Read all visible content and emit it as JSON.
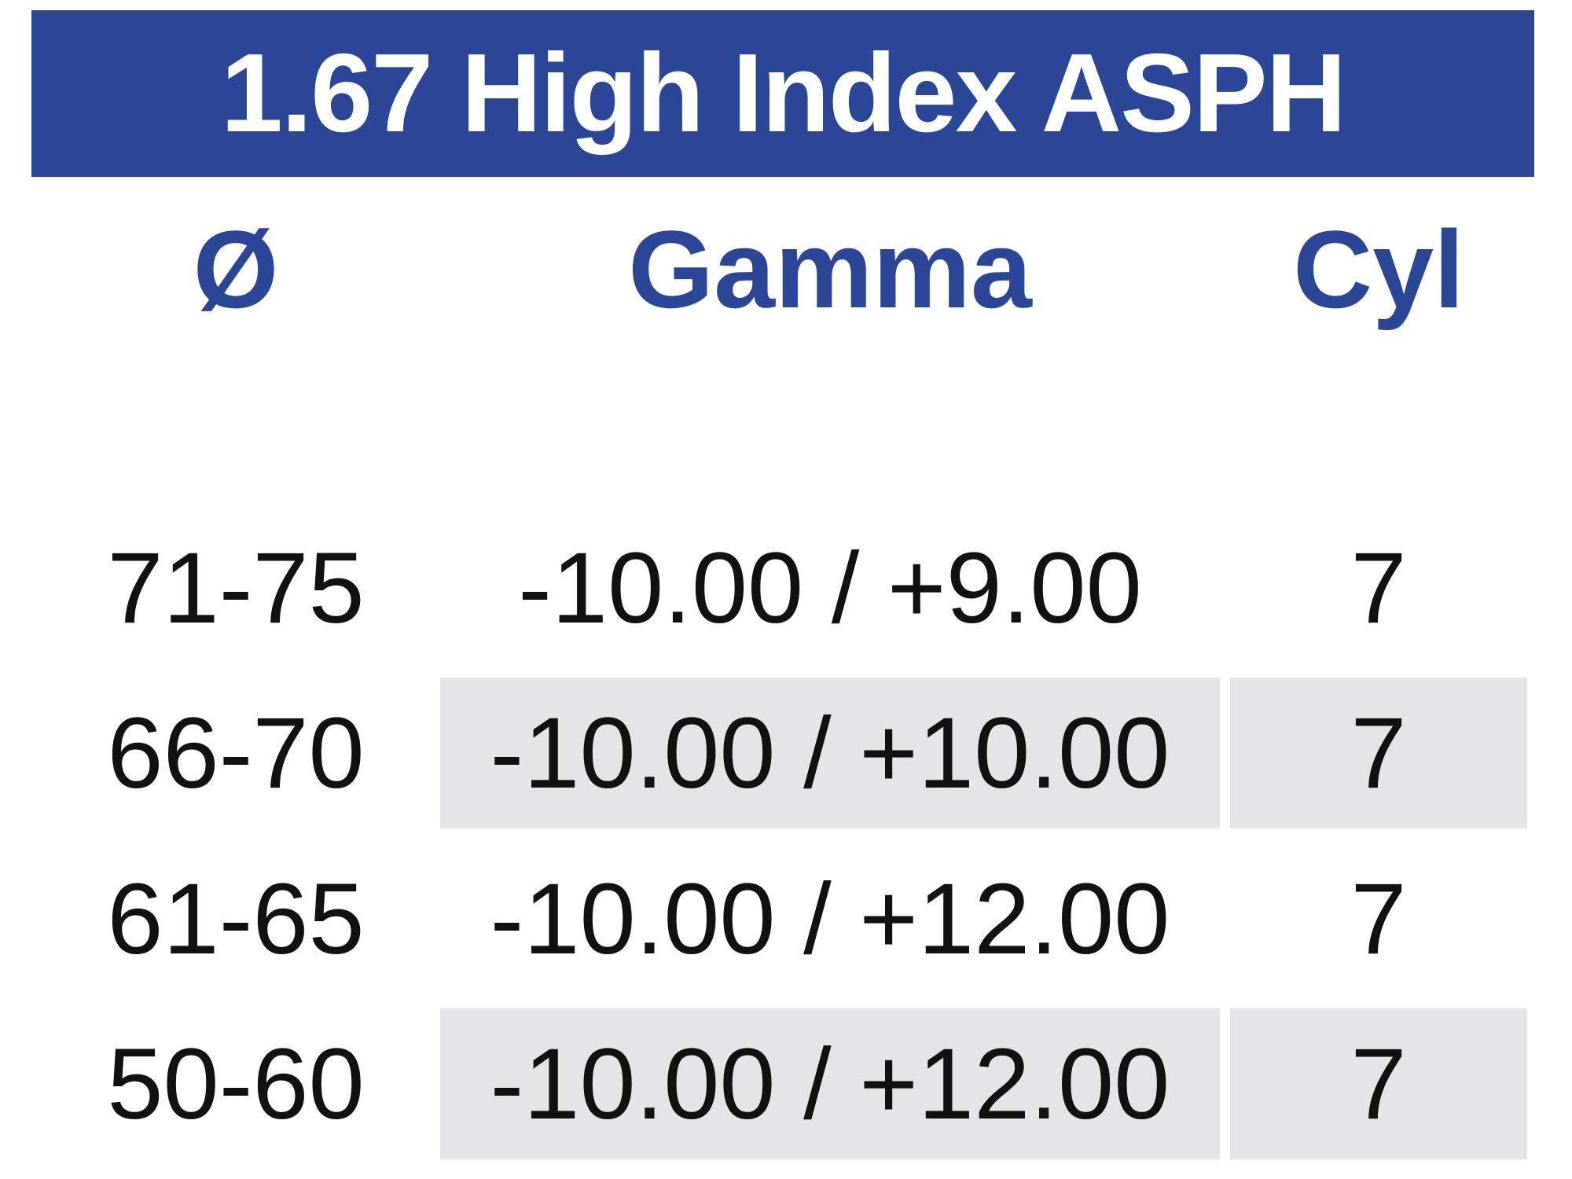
{
  "table": {
    "title": "1.67 High Index ASPH",
    "columns": [
      {
        "key": "diameter",
        "label": "Ø"
      },
      {
        "key": "gamma",
        "label": "Gamma"
      },
      {
        "key": "cyl",
        "label": "Cyl"
      }
    ],
    "rows": [
      {
        "diameter": "71-75",
        "gamma": "-10.00 / +9.00",
        "cyl": "7",
        "shaded": false
      },
      {
        "diameter": "66-70",
        "gamma": "-10.00 / +10.00",
        "cyl": "7",
        "shaded": true
      },
      {
        "diameter": "61-65",
        "gamma": "-10.00 / +12.00",
        "cyl": "7",
        "shaded": false
      },
      {
        "diameter": "50-60",
        "gamma": "-10.00 / +12.00",
        "cyl": "7",
        "shaded": true
      }
    ],
    "colors": {
      "banner_blue": "#2b4697",
      "header_text_blue": "#2b4697",
      "row_shade_gray": "#e5e4e6",
      "title_text": "#ffffff",
      "body_text": "#111111"
    }
  }
}
